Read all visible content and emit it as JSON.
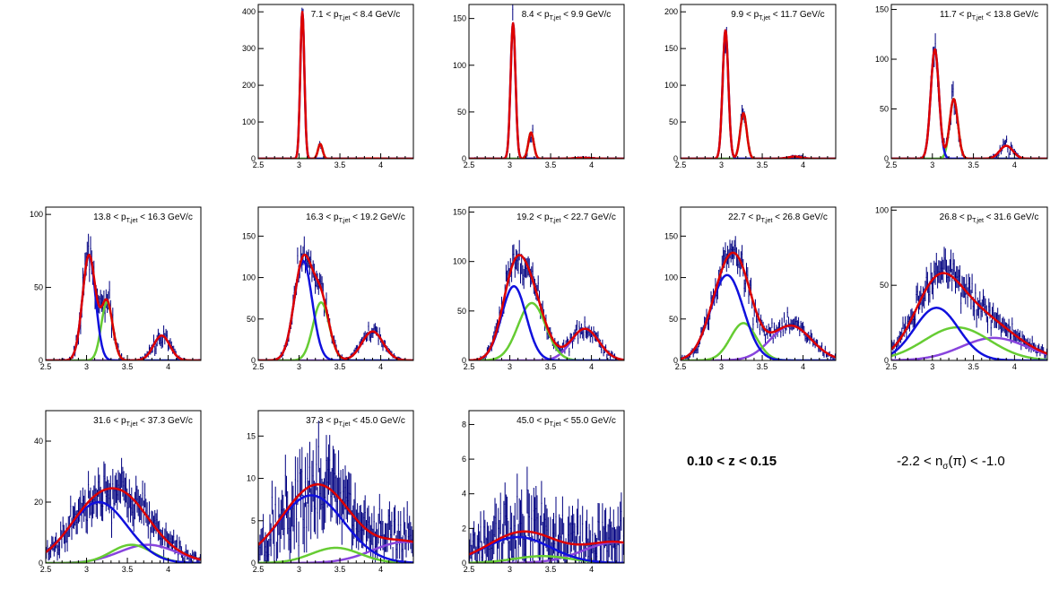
{
  "colors": {
    "frame": "#000000",
    "data": "#000080",
    "total": "#dd0000",
    "pion": "#1010dd",
    "kaon": "#66cc33",
    "proton": "#8844dd"
  },
  "z_range": "0.10 < z < 0.15",
  "nsigma": {
    "prefix": "-2.2 < n",
    "sub": "σ",
    "suffix": "(π) < -1.0"
  },
  "chart_data": [
    {
      "type": "line",
      "title_lo": "7.1",
      "title_hi": "8.4",
      "title_unit": "GeV/c",
      "xlim": [
        2.5,
        4.4
      ],
      "ylim": [
        0,
        420
      ],
      "yticks": [
        0,
        100,
        200,
        300,
        400
      ],
      "xticks": [
        2.5,
        3,
        3.5,
        4
      ],
      "components": [
        {
          "name": "pion",
          "A": 400,
          "mu": 3.04,
          "sigma": 0.025
        },
        {
          "name": "kaon",
          "A": 40,
          "mu": 3.26,
          "sigma": 0.028
        },
        {
          "name": "proton",
          "A": 0.5,
          "mu": 3.9,
          "sigma": 0.1
        }
      ]
    },
    {
      "type": "line",
      "title_lo": "8.4",
      "title_hi": "9.9",
      "title_unit": "GeV/c",
      "xlim": [
        2.5,
        4.4
      ],
      "ylim": [
        0,
        165
      ],
      "yticks": [
        0,
        50,
        100,
        150
      ],
      "xticks": [
        2.5,
        3,
        3.5,
        4
      ],
      "components": [
        {
          "name": "pion",
          "A": 145,
          "mu": 3.04,
          "sigma": 0.03
        },
        {
          "name": "kaon",
          "A": 28,
          "mu": 3.26,
          "sigma": 0.033
        },
        {
          "name": "proton",
          "A": 1,
          "mu": 3.9,
          "sigma": 0.1
        }
      ]
    },
    {
      "type": "line",
      "title_lo": "9.9",
      "title_hi": "11.7",
      "title_unit": "GeV/c",
      "xlim": [
        2.5,
        4.4
      ],
      "ylim": [
        0,
        210
      ],
      "yticks": [
        0,
        50,
        100,
        150,
        200
      ],
      "xticks": [
        2.5,
        3,
        3.5,
        4
      ],
      "components": [
        {
          "name": "pion",
          "A": 175,
          "mu": 3.05,
          "sigma": 0.035
        },
        {
          "name": "kaon",
          "A": 62,
          "mu": 3.27,
          "sigma": 0.04
        },
        {
          "name": "proton",
          "A": 3,
          "mu": 3.9,
          "sigma": 0.08
        }
      ]
    },
    {
      "type": "line",
      "title_lo": "11.7",
      "title_hi": "13.8",
      "title_unit": "GeV/c",
      "xlim": [
        2.5,
        4.4
      ],
      "ylim": [
        0,
        155
      ],
      "yticks": [
        0,
        50,
        100,
        150
      ],
      "xticks": [
        2.5,
        3,
        3.5,
        4
      ],
      "components": [
        {
          "name": "pion",
          "A": 110,
          "mu": 3.03,
          "sigma": 0.05
        },
        {
          "name": "kaon",
          "A": 60,
          "mu": 3.26,
          "sigma": 0.05
        },
        {
          "name": "proton",
          "A": 13,
          "mu": 3.9,
          "sigma": 0.08
        }
      ]
    },
    {
      "type": "line",
      "title_lo": "13.8",
      "title_hi": "16.3",
      "title_unit": "GeV/c",
      "xlim": [
        2.5,
        4.4
      ],
      "ylim": [
        0,
        105
      ],
      "yticks": [
        0,
        50,
        100
      ],
      "xticks": [
        2.5,
        3,
        3.5,
        4
      ],
      "components": [
        {
          "name": "pion",
          "A": 72,
          "mu": 3.03,
          "sigma": 0.08
        },
        {
          "name": "kaon",
          "A": 40,
          "mu": 3.25,
          "sigma": 0.07
        },
        {
          "name": "proton",
          "A": 17,
          "mu": 3.92,
          "sigma": 0.1
        }
      ]
    },
    {
      "type": "line",
      "title_lo": "16.3",
      "title_hi": "19.2",
      "title_unit": "GeV/c",
      "xlim": [
        2.5,
        4.4
      ],
      "ylim": [
        0,
        185
      ],
      "yticks": [
        0,
        50,
        100,
        150
      ],
      "xticks": [
        2.5,
        3,
        3.5,
        4
      ],
      "components": [
        {
          "name": "pion",
          "A": 120,
          "mu": 3.05,
          "sigma": 0.11
        },
        {
          "name": "kaon",
          "A": 70,
          "mu": 3.27,
          "sigma": 0.1
        },
        {
          "name": "proton",
          "A": 35,
          "mu": 3.9,
          "sigma": 0.13
        }
      ]
    },
    {
      "type": "line",
      "title_lo": "19.2",
      "title_hi": "22.7",
      "title_unit": "GeV/c",
      "xlim": [
        2.5,
        4.4
      ],
      "ylim": [
        0,
        155
      ],
      "yticks": [
        0,
        50,
        100,
        150
      ],
      "xticks": [
        2.5,
        3,
        3.5,
        4
      ],
      "components": [
        {
          "name": "pion",
          "A": 75,
          "mu": 3.05,
          "sigma": 0.15
        },
        {
          "name": "kaon",
          "A": 58,
          "mu": 3.27,
          "sigma": 0.17
        },
        {
          "name": "proton",
          "A": 32,
          "mu": 3.92,
          "sigma": 0.17
        }
      ]
    },
    {
      "type": "line",
      "title_lo": "22.7",
      "title_hi": "26.8",
      "title_unit": "GeV/c",
      "xlim": [
        2.5,
        4.4
      ],
      "ylim": [
        0,
        185
      ],
      "yticks": [
        0,
        50,
        100,
        150
      ],
      "xticks": [
        2.5,
        3,
        3.5,
        4
      ],
      "components": [
        {
          "name": "pion",
          "A": 103,
          "mu": 3.07,
          "sigma": 0.2
        },
        {
          "name": "kaon",
          "A": 45,
          "mu": 3.27,
          "sigma": 0.16
        },
        {
          "name": "proton",
          "A": 42,
          "mu": 3.85,
          "sigma": 0.25
        }
      ]
    },
    {
      "type": "line",
      "title_lo": "26.8",
      "title_hi": "31.6",
      "title_unit": "GeV/c",
      "xlim": [
        2.5,
        4.4
      ],
      "ylim": [
        0,
        102
      ],
      "yticks": [
        0,
        50,
        100
      ],
      "xticks": [
        2.5,
        3,
        3.5,
        4
      ],
      "components": [
        {
          "name": "pion",
          "A": 35,
          "mu": 3.05,
          "sigma": 0.27
        },
        {
          "name": "kaon",
          "A": 22,
          "mu": 3.3,
          "sigma": 0.4
        },
        {
          "name": "proton",
          "A": 15,
          "mu": 3.75,
          "sigma": 0.4
        }
      ]
    },
    {
      "type": "line",
      "title_lo": "31.6",
      "title_hi": "37.3",
      "title_unit": "GeV/c",
      "xlim": [
        2.5,
        4.4
      ],
      "ylim": [
        0,
        50
      ],
      "yticks": [
        0,
        20,
        40
      ],
      "xticks": [
        2.5,
        3,
        3.5,
        4
      ],
      "components": [
        {
          "name": "pion",
          "A": 20,
          "mu": 3.15,
          "sigma": 0.35
        },
        {
          "name": "kaon",
          "A": 6,
          "mu": 3.55,
          "sigma": 0.25
        },
        {
          "name": "proton",
          "A": 6,
          "mu": 3.75,
          "sigma": 0.35
        }
      ]
    },
    {
      "type": "line",
      "title_lo": "37.3",
      "title_hi": "45.0",
      "title_unit": "GeV/c",
      "xlim": [
        2.5,
        4.4
      ],
      "ylim": [
        0,
        18
      ],
      "yticks": [
        0,
        5,
        10,
        15
      ],
      "xticks": [
        2.5,
        3,
        3.5,
        4
      ],
      "components": [
        {
          "name": "pion",
          "A": 8,
          "mu": 3.15,
          "sigma": 0.4
        },
        {
          "name": "kaon",
          "A": 1.8,
          "mu": 3.45,
          "sigma": 0.3
        },
        {
          "name": "proton",
          "A": 2.5,
          "mu": 4.3,
          "sigma": 0.4
        }
      ]
    },
    {
      "type": "line",
      "title_lo": "45.0",
      "title_hi": "55.0",
      "title_unit": "GeV/c",
      "xlim": [
        2.5,
        4.4
      ],
      "ylim": [
        0,
        8.8
      ],
      "yticks": [
        0,
        2,
        4,
        6,
        8
      ],
      "xticks": [
        2.5,
        3,
        3.5,
        4
      ],
      "components": [
        {
          "name": "pion",
          "A": 1.5,
          "mu": 3.1,
          "sigma": 0.4
        },
        {
          "name": "kaon",
          "A": 0.4,
          "mu": 3.4,
          "sigma": 0.35
        },
        {
          "name": "proton",
          "A": 1.2,
          "mu": 4.3,
          "sigma": 0.4
        }
      ]
    }
  ]
}
